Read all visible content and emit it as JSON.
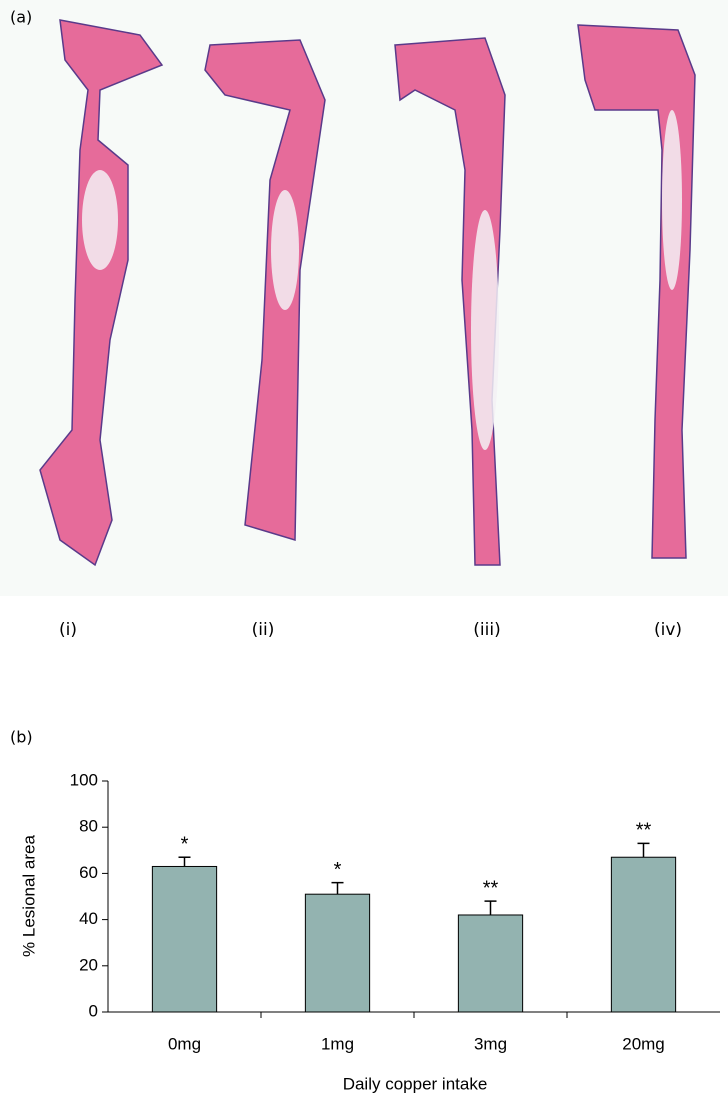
{
  "panel_a": {
    "label": "(a)",
    "captions": [
      "(i)",
      "(ii)",
      "(iii)",
      "(iv)"
    ]
  },
  "chart_data": {
    "type": "bar",
    "panel_label": "(b)",
    "x_label": "Daily copper intake",
    "y_label": "% Lesional area",
    "categories": [
      "0mg",
      "1mg",
      "3mg",
      "20mg"
    ],
    "values": [
      63,
      51,
      42,
      67
    ],
    "errors": [
      4,
      5,
      6,
      6
    ],
    "annotations": [
      "*",
      "*",
      "**",
      "**"
    ],
    "color": "#93b3b0",
    "ylim": [
      0,
      100
    ],
    "yticks": [
      0,
      20,
      40,
      60,
      80,
      100
    ]
  }
}
